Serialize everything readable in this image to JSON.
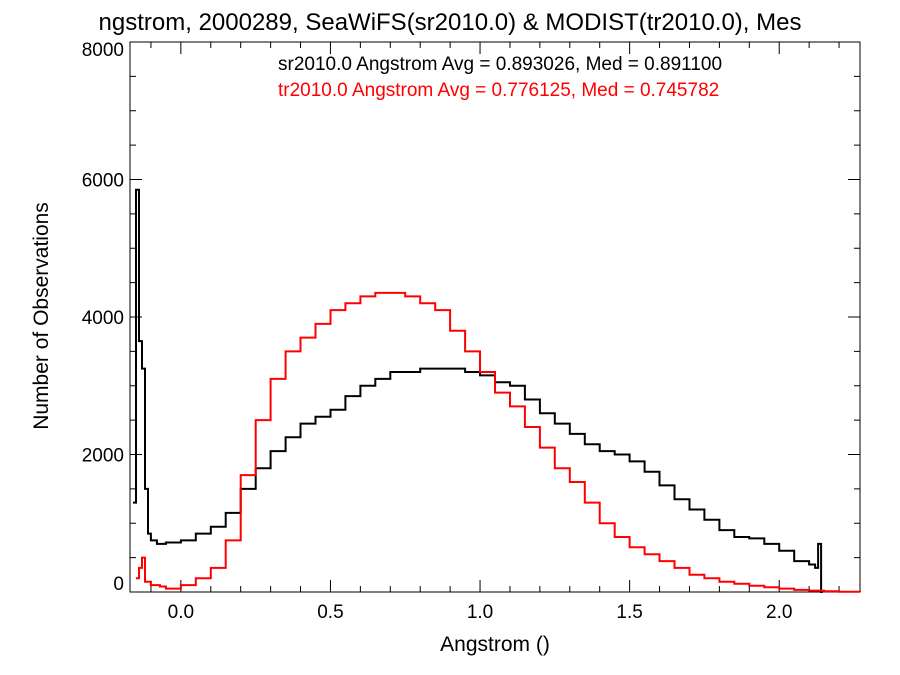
{
  "chart_data": {
    "type": "line",
    "title": "ngstrom, 2000289, SeaWiFS(sr2010.0) & MODIST(tr2010.0), Mes",
    "xlabel": "Angstrom ()",
    "ylabel": "Number of Observations",
    "xlim": [
      -0.17,
      2.27
    ],
    "ylim": [
      0,
      8000
    ],
    "xticks": [
      0.0,
      0.5,
      1.0,
      1.5,
      2.0
    ],
    "xtick_labels": [
      "0.0",
      "0.5",
      "1.0",
      "1.5",
      "2.0"
    ],
    "yticks": [
      0,
      2000,
      4000,
      6000,
      8000
    ],
    "ytick_labels": [
      "0",
      "2000",
      "4000",
      "6000",
      "8000"
    ],
    "grid": false,
    "legend_position": "top-right",
    "series": [
      {
        "name": "sr2010.0",
        "color": "#000000",
        "stat_label": "sr2010.0 Angstrom Avg = 0.893026, Med = 0.891100",
        "x": [
          -0.16,
          -0.15,
          -0.14,
          -0.13,
          -0.12,
          -0.11,
          -0.1,
          -0.08,
          -0.05,
          0.0,
          0.05,
          0.1,
          0.15,
          0.2,
          0.25,
          0.3,
          0.35,
          0.4,
          0.45,
          0.5,
          0.55,
          0.6,
          0.65,
          0.7,
          0.75,
          0.8,
          0.85,
          0.9,
          0.95,
          1.0,
          1.05,
          1.1,
          1.15,
          1.2,
          1.25,
          1.3,
          1.35,
          1.4,
          1.45,
          1.5,
          1.55,
          1.6,
          1.65,
          1.7,
          1.75,
          1.8,
          1.85,
          1.9,
          1.95,
          2.0,
          2.05,
          2.1,
          2.12,
          2.13,
          2.14,
          2.145
        ],
        "y": [
          1300,
          5850,
          3650,
          3250,
          1500,
          850,
          750,
          700,
          720,
          750,
          850,
          950,
          1150,
          1500,
          1800,
          2050,
          2250,
          2450,
          2550,
          2650,
          2850,
          3000,
          3100,
          3200,
          3200,
          3250,
          3250,
          3250,
          3200,
          3150,
          3050,
          3000,
          2800,
          2600,
          2450,
          2300,
          2150,
          2050,
          2000,
          1900,
          1750,
          1550,
          1350,
          1200,
          1050,
          900,
          800,
          780,
          700,
          600,
          450,
          400,
          350,
          700,
          0,
          0
        ]
      },
      {
        "name": "tr2010.0",
        "color": "#ff0000",
        "stat_label": "tr2010.0 Angstrom Avg = 0.776125, Med = 0.745782",
        "x": [
          -0.15,
          -0.14,
          -0.13,
          -0.12,
          -0.1,
          -0.07,
          -0.05,
          0.0,
          0.05,
          0.1,
          0.15,
          0.2,
          0.25,
          0.3,
          0.35,
          0.4,
          0.45,
          0.5,
          0.55,
          0.6,
          0.65,
          0.7,
          0.75,
          0.8,
          0.85,
          0.9,
          0.95,
          1.0,
          1.05,
          1.1,
          1.15,
          1.2,
          1.25,
          1.3,
          1.35,
          1.4,
          1.45,
          1.5,
          1.55,
          1.6,
          1.65,
          1.7,
          1.75,
          1.8,
          1.85,
          1.9,
          1.95,
          2.0,
          2.05,
          2.1,
          2.15,
          2.2,
          2.27
        ],
        "y": [
          200,
          350,
          500,
          150,
          100,
          80,
          50,
          100,
          200,
          350,
          750,
          1700,
          2500,
          3100,
          3500,
          3700,
          3900,
          4100,
          4200,
          4300,
          4350,
          4350,
          4300,
          4200,
          4100,
          3800,
          3500,
          3200,
          2900,
          2700,
          2400,
          2100,
          1800,
          1600,
          1300,
          1000,
          800,
          650,
          550,
          450,
          350,
          250,
          200,
          150,
          120,
          90,
          70,
          50,
          30,
          20,
          10,
          5,
          0
        ]
      }
    ]
  }
}
